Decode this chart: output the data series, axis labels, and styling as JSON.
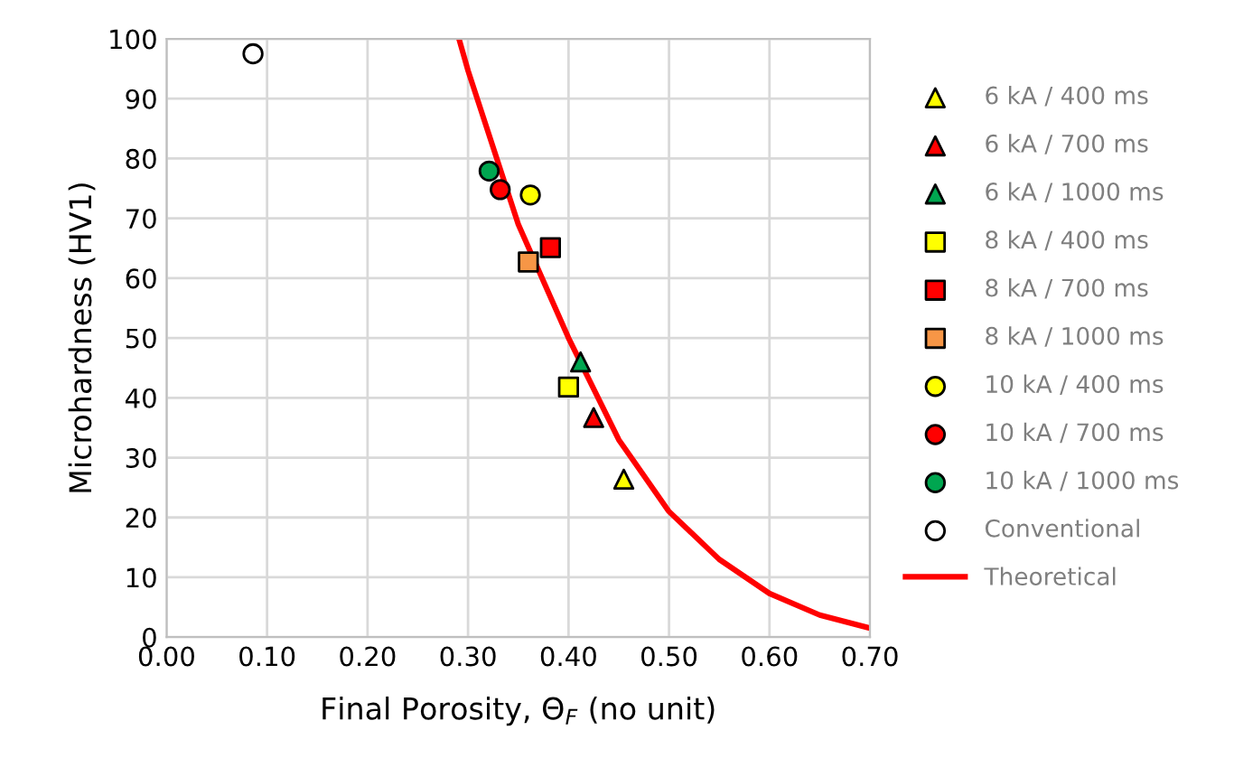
{
  "chart_data": {
    "type": "scatter",
    "xlabel": "Final Porosity, Θ$_{F}$ (no unit)",
    "ylabel": "Microhardness (HV1)",
    "xlim": [
      0,
      0.7
    ],
    "xticks": [
      {
        "value": 0,
        "label": "0.00"
      },
      {
        "value": 0.1,
        "label": "0.10"
      },
      {
        "value": 0.2,
        "label": "0.20"
      },
      {
        "value": 0.3,
        "label": "0.30"
      },
      {
        "value": 0.4,
        "label": "0.40"
      },
      {
        "value": 0.5,
        "label": "0.50"
      },
      {
        "value": 0.6,
        "label": "0.60"
      },
      {
        "value": 0.7,
        "label": "0.70"
      }
    ],
    "ylim": [
      0,
      100
    ],
    "yticks": [
      0,
      10,
      20,
      30,
      40,
      50,
      60,
      70,
      80,
      90,
      100
    ],
    "grid": true,
    "legend": "right",
    "series": [
      {
        "name": "6 kA / 400 ms",
        "color": "#ffff00",
        "marker": "triangle",
        "x": [
          0.455
        ],
        "values": [
          26.4
        ]
      },
      {
        "name": "6 kA / 700 ms",
        "color": "#ff0000",
        "marker": "triangle",
        "x": [
          0.425
        ],
        "values": [
          36.7
        ]
      },
      {
        "name": "6 kA / 1000 ms",
        "color": "#00a650",
        "marker": "triangle",
        "x": [
          0.412
        ],
        "values": [
          46.0
        ]
      },
      {
        "name": "8 kA / 400 ms",
        "color": "#ffff00",
        "marker": "square",
        "x": [
          0.4
        ],
        "values": [
          41.8
        ]
      },
      {
        "name": "8 kA / 700 ms",
        "color": "#ff0000",
        "marker": "square",
        "x": [
          0.382
        ],
        "values": [
          65.1
        ]
      },
      {
        "name": "8 kA / 1000 ms",
        "color": "#f79646",
        "marker": "square",
        "x": [
          0.36
        ],
        "values": [
          62.7
        ]
      },
      {
        "name": "10 kA / 400 ms",
        "color": "#ffff00",
        "marker": "circle",
        "x": [
          0.362
        ],
        "values": [
          73.9
        ]
      },
      {
        "name": "10 kA / 700 ms",
        "color": "#ff0000",
        "marker": "circle",
        "x": [
          0.332
        ],
        "values": [
          74.8
        ]
      },
      {
        "name": "10 kA / 1000 ms",
        "color": "#00a650",
        "marker": "circle",
        "x": [
          0.321
        ],
        "values": [
          77.9
        ]
      },
      {
        "name": "Conventional",
        "color": "#ffffff",
        "marker": "circle",
        "x": [
          0.086
        ],
        "values": [
          97.5
        ]
      },
      {
        "name": "Theoretical",
        "type": "line",
        "color": "#ff0000",
        "marker": "none",
        "line_style": "solid",
        "x": [
          0.291,
          0.3,
          0.35,
          0.4,
          0.45,
          0.5,
          0.55,
          0.6,
          0.65,
          0.7
        ],
        "values": [
          100,
          94.7,
          69,
          50,
          33,
          21,
          13,
          7.3,
          3.7,
          1.5
        ]
      }
    ]
  }
}
